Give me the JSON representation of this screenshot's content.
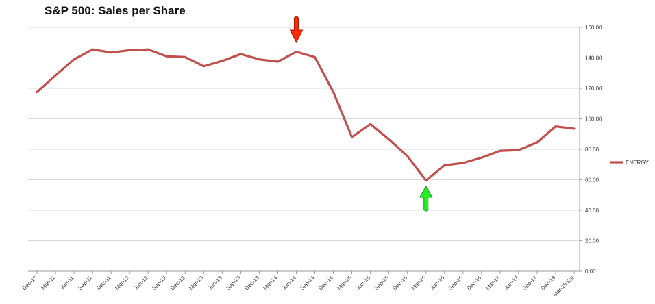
{
  "chart_data": {
    "type": "line",
    "title": "S&P 500: Sales per Share",
    "categories": [
      "Dec-10",
      "Mar-11",
      "Jun-11",
      "Sep-11",
      "Dec-11",
      "Mar-12",
      "Jun-12",
      "Sep-12",
      "Dec-12",
      "Mar-13",
      "Jun-13",
      "Sep-13",
      "Dec-13",
      "Mar-14",
      "Jun-14",
      "Sep-14",
      "Dec-14",
      "Mar-15",
      "Jun-15",
      "Sep-15",
      "Dec-15",
      "Mar-16",
      "Jun-16",
      "Sep-16",
      "Dec-16",
      "Mar-17",
      "Jun-17",
      "Sep-17",
      "Dec-18",
      "Mar-18 Est"
    ],
    "series": [
      {
        "name": "ENERGY",
        "color": "#c0504d",
        "values": [
          117.5,
          128.5,
          139,
          145.5,
          143.5,
          145,
          145.5,
          141,
          140.5,
          134.5,
          138,
          142.5,
          139,
          137.5,
          144,
          140.5,
          117.5,
          88,
          96.5,
          86.5,
          75.5,
          59.5,
          69.5,
          71,
          74.5,
          79,
          79.5,
          84.5,
          95,
          93.5
        ]
      }
    ],
    "y_axis": {
      "side": "right",
      "range": [
        0,
        160
      ],
      "ticks": [
        "0.00",
        "20.00",
        "40.00",
        "60.00",
        "80.00",
        "100.00",
        "120.00",
        "140.00",
        "160.00"
      ]
    },
    "grid": true,
    "legend_position": "right",
    "annotations": [
      {
        "kind": "arrow",
        "direction": "down",
        "color": "red",
        "category": "Jun-14"
      },
      {
        "kind": "arrow",
        "direction": "up",
        "color": "green",
        "category": "Mar-16"
      }
    ]
  }
}
